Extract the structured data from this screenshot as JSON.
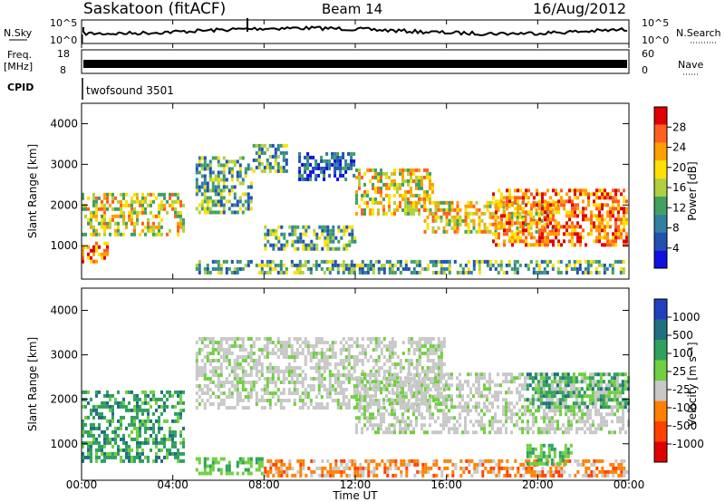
{
  "header": {
    "station": "Saskatoon (fitACF)",
    "beam": "Beam 14",
    "date": "16/Aug/2012"
  },
  "noise_panel": {
    "left_label": "N.Sky",
    "right_label": "N.Search",
    "left_ticks": [
      "10^5",
      "10^0"
    ],
    "right_ticks": [
      "10^5",
      "10^0"
    ]
  },
  "freq_panel": {
    "left_label_line1": "Freq.",
    "left_label_line2": "[MHz]",
    "right_label": "Nave",
    "left_ticks": [
      "18",
      "8"
    ],
    "right_ticks": [
      "60",
      "0"
    ]
  },
  "cpid_panel": {
    "label": "CPID",
    "program": "twofsound 3501"
  },
  "xaxis": {
    "label": "Time UT",
    "ticks": [
      "00:00",
      "04:00",
      "08:00",
      "12:00",
      "16:00",
      "20:00",
      "00:00"
    ]
  },
  "power_colorbar": {
    "label": "Power [dB]",
    "ticks": [
      "28",
      "24",
      "20",
      "16",
      "12",
      "8",
      "4"
    ],
    "colors": [
      "#e00000",
      "#ff6020",
      "#ffa000",
      "#ffe000",
      "#b0d040",
      "#40a060",
      "#3080a0",
      "#2050b0",
      "#1010e0"
    ]
  },
  "velocity_colorbar": {
    "label": "Velocity [m s⁻¹]",
    "ticks": [
      "1000",
      "500",
      "100",
      "25",
      "-25",
      "-100",
      "-500",
      "-1000"
    ],
    "colors": [
      "#2040c0",
      "#207080",
      "#30a060",
      "#70d040",
      "#c8c8c8",
      "#ff8000",
      "#ff4000",
      "#e00000"
    ]
  },
  "chart_data": {
    "type": "heatmap",
    "panels": [
      {
        "name": "power",
        "ylabel": "Slant Range [km]",
        "ylim": [
          180,
          4500
        ],
        "yticks": [
          "1000",
          "2000",
          "3000",
          "4000"
        ]
      },
      {
        "name": "velocity",
        "ylabel": "Slant Range [km]",
        "ylim": [
          180,
          4500
        ],
        "yticks": [
          "1000",
          "2000",
          "3000",
          "4000"
        ]
      }
    ],
    "xlim_hours": [
      0,
      24
    ],
    "xticks": [
      "00:00",
      "04:00",
      "08:00",
      "12:00",
      "16:00",
      "20:00",
      "00:00"
    ],
    "xlabel": "Time UT",
    "power_bands": [
      {
        "t0": 0.0,
        "t1": 4.5,
        "r0": 1200,
        "r1": 2300,
        "level": "mid-high"
      },
      {
        "t0": 0.0,
        "t1": 1.2,
        "r0": 600,
        "r1": 1100,
        "level": "high"
      },
      {
        "t0": 5.0,
        "t1": 7.5,
        "r0": 1800,
        "r1": 3200,
        "level": "mid"
      },
      {
        "t0": 7.5,
        "t1": 9.0,
        "r0": 2800,
        "r1": 3500,
        "level": "mid"
      },
      {
        "t0": 9.5,
        "t1": 12.0,
        "r0": 2600,
        "r1": 3300,
        "level": "low"
      },
      {
        "t0": 12.0,
        "t1": 15.5,
        "r0": 1700,
        "r1": 2900,
        "level": "mid-high"
      },
      {
        "t0": 15.0,
        "t1": 21.0,
        "r0": 1300,
        "r1": 2100,
        "level": "mid-high"
      },
      {
        "t0": 18.0,
        "t1": 24.0,
        "r0": 1000,
        "r1": 2400,
        "level": "high"
      },
      {
        "t0": 8.0,
        "t1": 12.0,
        "r0": 900,
        "r1": 1500,
        "level": "mid"
      },
      {
        "t0": 5.0,
        "t1": 24.0,
        "r0": 250,
        "r1": 650,
        "level": "mid"
      }
    ],
    "velocity_bands": [
      {
        "t0": 0.0,
        "t1": 4.5,
        "r0": 600,
        "r1": 2200,
        "v": "100 to 500"
      },
      {
        "t0": 5.0,
        "t1": 16.0,
        "r0": 1800,
        "r1": 3400,
        "v": "-25 to 25"
      },
      {
        "t0": 12.0,
        "t1": 24.0,
        "r0": 1200,
        "r1": 2600,
        "v": "-25 to 25"
      },
      {
        "t0": 19.5,
        "t1": 24.0,
        "r0": 1800,
        "r1": 2600,
        "v": "100 to 500"
      },
      {
        "t0": 5.0,
        "t1": 8.0,
        "r0": 300,
        "r1": 700,
        "v": "25 to 100"
      },
      {
        "t0": 8.0,
        "t1": 24.0,
        "r0": 250,
        "r1": 650,
        "v": "-100 to -500"
      },
      {
        "t0": 19.5,
        "t1": 21.5,
        "r0": 500,
        "r1": 1000,
        "v": "25 to 100"
      }
    ]
  }
}
